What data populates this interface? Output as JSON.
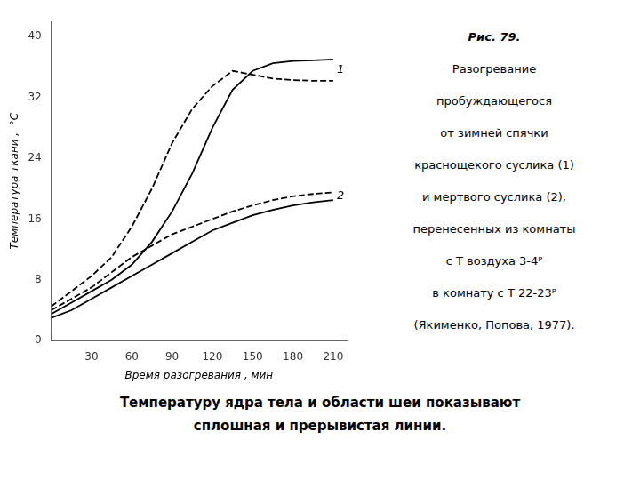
{
  "chart_data": {
    "type": "line",
    "title": "Рис. 79.",
    "subtitle": [
      "Разогревание",
      "пробуждающегося",
      "от  зимней  спячки",
      "краснощекого  суслика (1)",
      "и  мертвого  суслика (2),",
      "перенесенных  из  комнаты",
      "с  Т воздуха  3-4ᴾ",
      "в  комнату с Т 22-23ᴾ",
      "(Якименко,  Попова, 1977)."
    ],
    "caption": [
      "Температуру  ядра тела и области шеи  показывают",
      "сплошная и прерывистая линии."
    ],
    "xlabel": "Время разогревания , мин",
    "ylabel": "Температура ткани ,  °C",
    "annotations": [
      "1",
      "2"
    ],
    "x": [
      0,
      15,
      30,
      45,
      60,
      75,
      90,
      105,
      120,
      135,
      150,
      165,
      180,
      195,
      210
    ],
    "series": [
      {
        "color": "black",
        "line_style": "solid",
        "values": [
          3.5,
          5.0,
          6.5,
          8.0,
          10.0,
          13.0,
          17.0,
          22.0,
          28.0,
          33.0,
          35.5,
          36.5,
          36.8,
          36.9,
          37.0
        ]
      },
      {
        "color": "black",
        "line_style": "dashed",
        "values": [
          4.5,
          6.5,
          8.5,
          11.0,
          15.0,
          20.0,
          26.0,
          30.5,
          33.5,
          35.5,
          35.0,
          34.5,
          34.3,
          34.2,
          34.2
        ]
      },
      {
        "color": "black",
        "line_style": "solid",
        "values": [
          3.0,
          4.0,
          5.5,
          7.0,
          8.5,
          10.0,
          11.5,
          13.0,
          14.5,
          15.5,
          16.5,
          17.2,
          17.8,
          18.2,
          18.5
        ]
      },
      {
        "color": "black",
        "line_style": "dashed",
        "values": [
          4.0,
          5.5,
          7.0,
          9.0,
          11.0,
          12.5,
          14.0,
          15.0,
          16.0,
          17.0,
          17.8,
          18.5,
          19.0,
          19.3,
          19.5
        ]
      }
    ],
    "xlim": [
      0,
      220
    ],
    "xticks": [
      30,
      60,
      90,
      120,
      150,
      180,
      210
    ],
    "ylim": [
      0,
      42
    ],
    "yticks": [
      0,
      8,
      16,
      24,
      32,
      40
    ],
    "grid": false
  }
}
